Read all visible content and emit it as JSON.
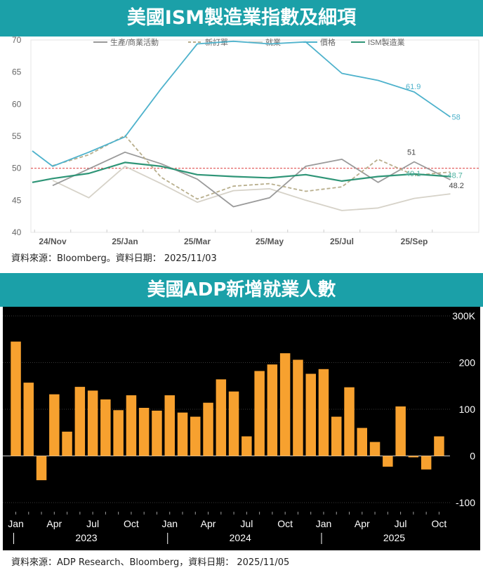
{
  "chart1": {
    "title": "美國ISM製造業指數及細項",
    "source": "資料來源：Bloomberg。資料日期： 2025/11/03",
    "chart_data": {
      "type": "line",
      "title": "美國ISM製造業指數及細項",
      "x": [
        "24/Nov",
        "24/Dec",
        "25/Jan",
        "25/Feb",
        "25/Mar",
        "25/Apr",
        "25/May",
        "25/Jun",
        "25/Jul",
        "25/Aug",
        "25/Sep",
        "25/Oct"
      ],
      "x_tick_labels": [
        "24/Nov",
        "25/Jan",
        "25/Mar",
        "25/May",
        "25/Jul",
        "25/Sep"
      ],
      "ylim": [
        40,
        70
      ],
      "y_ticks": [
        40,
        45,
        50,
        55,
        60,
        65,
        70
      ],
      "grid": false,
      "legend_position": "top",
      "reference_line": {
        "y": 50,
        "color": "#e05050"
      },
      "series": [
        {
          "name": "生產/商業活動",
          "key": "production",
          "color": "#9a9a9a",
          "dash": "solid",
          "values": [
            47.3,
            49.9,
            52.5,
            50.7,
            48.3,
            44.0,
            45.4,
            50.3,
            51.4,
            47.8,
            51.0,
            48.2
          ],
          "end_label": "51"
        },
        {
          "name": "新訂單",
          "key": "new_orders",
          "color": "#b8ae8c",
          "dash": "dashed",
          "values": [
            50.4,
            52.1,
            55.1,
            48.6,
            45.2,
            47.2,
            47.6,
            46.4,
            47.1,
            51.4,
            48.9,
            49.4
          ]
        },
        {
          "name": "就業",
          "key": "employment",
          "color": "#d6d2c8",
          "dash": "solid",
          "values": [
            48.1,
            45.4,
            50.3,
            47.6,
            44.7,
            46.5,
            46.8,
            45.0,
            43.4,
            43.8,
            45.3,
            46.0
          ]
        },
        {
          "name": "價格",
          "key": "prices",
          "color": "#4eb2cc",
          "dash": "solid",
          "values": [
            50.3,
            52.5,
            54.9,
            62.4,
            69.4,
            69.8,
            69.4,
            69.7,
            64.8,
            63.7,
            61.9,
            58.0
          ],
          "start_value": 52.7,
          "labels": [
            "61.9",
            "58"
          ]
        },
        {
          "name": "ISM製造業",
          "key": "ism",
          "color": "#2f9577",
          "dash": "solid",
          "values": [
            48.4,
            49.2,
            50.9,
            50.3,
            49.0,
            48.7,
            48.5,
            49.0,
            48.0,
            48.7,
            49.1,
            48.7
          ],
          "start_value": 47.8,
          "labels": [
            "49.1",
            "48.7"
          ]
        }
      ]
    }
  },
  "chart2": {
    "title": "美國ADP新增就業人數",
    "source": "資料來源：ADP Research、Bloomberg，資料日期： 2025/11/05",
    "chart_data": {
      "type": "bar",
      "title": "美國ADP新增就業人數",
      "categories": [
        "2023-01",
        "2023-02",
        "2023-03",
        "2023-04",
        "2023-05",
        "2023-06",
        "2023-07",
        "2023-08",
        "2023-09",
        "2023-10",
        "2023-11",
        "2023-12",
        "2024-01",
        "2024-02",
        "2024-03",
        "2024-04",
        "2024-05",
        "2024-06",
        "2024-07",
        "2024-08",
        "2024-09",
        "2024-10",
        "2024-11",
        "2024-12",
        "2025-01",
        "2025-02",
        "2025-03",
        "2025-04",
        "2025-05",
        "2025-06",
        "2025-07",
        "2025-08",
        "2025-09",
        "2025-10"
      ],
      "values": [
        245,
        157,
        -52,
        132,
        52,
        148,
        140,
        121,
        98,
        130,
        103,
        97,
        130,
        93,
        84,
        114,
        164,
        138,
        42,
        182,
        196,
        220,
        206,
        176,
        186,
        84,
        147,
        60,
        30,
        -23,
        106,
        -3,
        -29,
        42
      ],
      "ylim": [
        -100,
        300
      ],
      "y_ticks": [
        -100,
        0,
        100,
        200,
        300
      ],
      "y_tick_labels": [
        "-100",
        "0",
        "100",
        "200",
        "300K"
      ],
      "x_month_labels": [
        "Jan",
        "Apr",
        "Jul",
        "Oct",
        "Jan",
        "Apr",
        "Jul",
        "Oct",
        "Jan",
        "Apr",
        "Jul",
        "Oct"
      ],
      "x_year_labels": [
        "2023",
        "2024",
        "2025"
      ],
      "bar_color": "#f7a12f",
      "background": "#000000"
    }
  }
}
